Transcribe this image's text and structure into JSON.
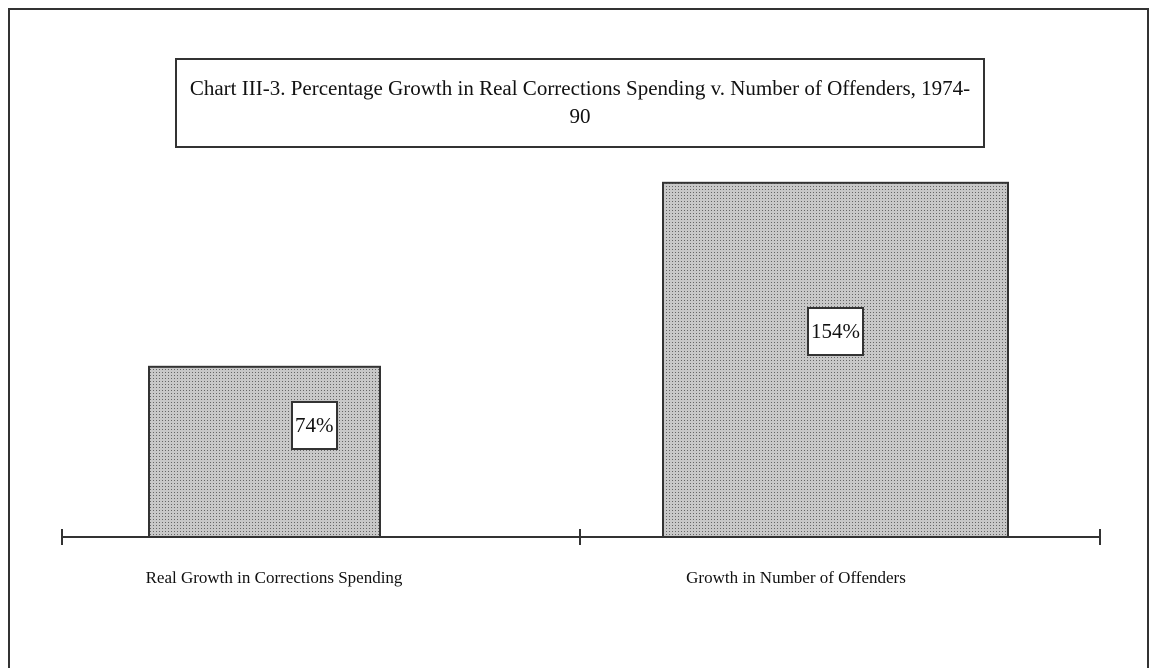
{
  "chart_data": {
    "type": "bar",
    "title": "Chart III-3.  Percentage Growth in Real Corrections Spending v. Number of Offenders, 1974-90",
    "categories": [
      "Real Growth in Corrections Spending",
      "Growth in Number of Offenders"
    ],
    "values": [
      74,
      154
    ],
    "value_labels": [
      "74%",
      "154%"
    ],
    "color": "#b4b4b4"
  }
}
